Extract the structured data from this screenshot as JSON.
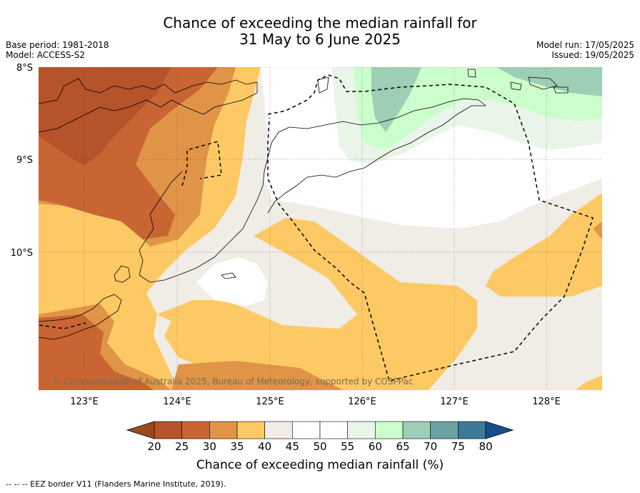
{
  "title": {
    "line1": "Chance of exceeding the median rainfall for",
    "line2": "31 May to 6 June 2025"
  },
  "meta_left": {
    "base_period": "Base period: 1981-2018",
    "model": "Model: ACCESS-S2"
  },
  "meta_right": {
    "model_run": "Model run: 17/05/2025",
    "issued": "Issued: 19/05/2025"
  },
  "axes": {
    "lat_labels": [
      "8°S",
      "9°S",
      "10°S"
    ],
    "lon_labels": [
      "123°E",
      "124°E",
      "125°E",
      "126°E",
      "127°E",
      "128°E"
    ]
  },
  "copyright": "© Commonwealth of Australia 2025, Bureau of Meteorology, supported by COSPPac",
  "colorbar": {
    "ticks": [
      "20",
      "25",
      "30",
      "35",
      "40",
      "45",
      "50",
      "55",
      "60",
      "65",
      "70",
      "75",
      "80"
    ],
    "colors": [
      "#9c4a1f",
      "#b5532b",
      "#c86533",
      "#e09447",
      "#fdc964",
      "#f0ece6",
      "#ffffff",
      "#ffffff",
      "#e9f5e9",
      "#ccfdcc",
      "#9ccfb5",
      "#6da2a2",
      "#3c7a96",
      "#184f8a"
    ],
    "label": "Chance of exceeding median rainfall (%)"
  },
  "footnote": "--  --  -- EEZ border V11 (Flanders Marine Institute, 2019)."
}
